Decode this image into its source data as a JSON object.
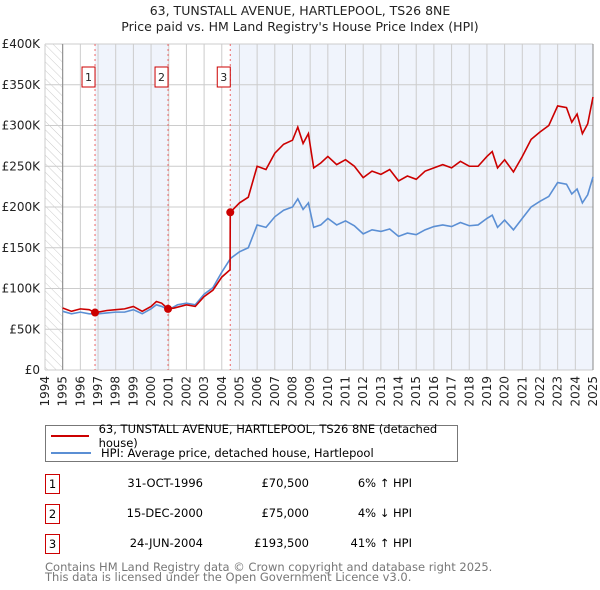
{
  "title_line1": "63, TUNSTALL AVENUE, HARTLEPOOL, TS26 8NE",
  "title_line2": "Price paid vs. HM Land Registry's House Price Index (HPI)",
  "chart_data": {
    "type": "line",
    "title": "63, TUNSTALL AVENUE, HARTLEPOOL, TS26 8NE — Price paid vs. HM Land Registry's House Price Index (HPI)",
    "xlim": [
      1994,
      2025
    ],
    "ylim": [
      0,
      400000
    ],
    "x_ticks": [
      "1994",
      "1995",
      "1996",
      "1997",
      "1998",
      "1999",
      "2000",
      "2001",
      "2002",
      "2003",
      "2004",
      "2005",
      "2006",
      "2007",
      "2008",
      "2009",
      "2010",
      "2011",
      "2012",
      "2013",
      "2014",
      "2015",
      "2016",
      "2017",
      "2018",
      "2019",
      "2020",
      "2021",
      "2022",
      "2023",
      "2024",
      "2025"
    ],
    "y_ticks": [
      {
        "v": 0,
        "label": "£0"
      },
      {
        "v": 50000,
        "label": "£50K"
      },
      {
        "v": 100000,
        "label": "£100K"
      },
      {
        "v": 150000,
        "label": "£150K"
      },
      {
        "v": 200000,
        "label": "£200K"
      },
      {
        "v": 250000,
        "label": "£250K"
      },
      {
        "v": 300000,
        "label": "£300K"
      },
      {
        "v": 350000,
        "label": "£350K"
      },
      {
        "v": 400000,
        "label": "£400K"
      }
    ],
    "grid": true,
    "series": [
      {
        "name": "63, TUNSTALL AVENUE, HARTLEPOOL, TS26 8NE (detached house)",
        "color": "#cc0000",
        "points": [
          [
            1995,
            76
          ],
          [
            1995.5,
            72
          ],
          [
            1996,
            75
          ],
          [
            1996.5,
            74
          ],
          [
            1996.83,
            70.5
          ],
          [
            1997,
            71
          ],
          [
            1997.5,
            73
          ],
          [
            1998,
            74
          ],
          [
            1998.5,
            75
          ],
          [
            1999,
            78
          ],
          [
            1999.5,
            72
          ],
          [
            2000,
            78
          ],
          [
            2000.3,
            84
          ],
          [
            2000.6,
            82
          ],
          [
            2000.96,
            75
          ],
          [
            2001.3,
            76
          ],
          [
            2002,
            80
          ],
          [
            2002.5,
            78
          ],
          [
            2003,
            90
          ],
          [
            2003.5,
            98
          ],
          [
            2004,
            114
          ],
          [
            2004.47,
            123
          ],
          [
            2004.48,
            193.5
          ],
          [
            2005,
            205
          ],
          [
            2005.5,
            212
          ],
          [
            2006,
            250
          ],
          [
            2006.5,
            246
          ],
          [
            2007,
            266
          ],
          [
            2007.5,
            277
          ],
          [
            2008,
            282
          ],
          [
            2008.3,
            298
          ],
          [
            2008.6,
            278
          ],
          [
            2008.9,
            290
          ],
          [
            2009.2,
            248
          ],
          [
            2009.6,
            254
          ],
          [
            2010,
            262
          ],
          [
            2010.5,
            252
          ],
          [
            2011,
            258
          ],
          [
            2011.5,
            250
          ],
          [
            2012,
            236
          ],
          [
            2012.5,
            244
          ],
          [
            2013,
            240
          ],
          [
            2013.5,
            246
          ],
          [
            2014,
            232
          ],
          [
            2014.5,
            238
          ],
          [
            2015,
            234
          ],
          [
            2015.5,
            244
          ],
          [
            2016,
            248
          ],
          [
            2016.5,
            252
          ],
          [
            2017,
            248
          ],
          [
            2017.5,
            256
          ],
          [
            2018,
            250
          ],
          [
            2018.5,
            250
          ],
          [
            2019,
            262
          ],
          [
            2019.3,
            268
          ],
          [
            2019.6,
            248
          ],
          [
            2020,
            258
          ],
          [
            2020.5,
            243
          ],
          [
            2021,
            262
          ],
          [
            2021.5,
            283
          ],
          [
            2022,
            292
          ],
          [
            2022.5,
            300
          ],
          [
            2023,
            324
          ],
          [
            2023.5,
            322
          ],
          [
            2023.8,
            304
          ],
          [
            2024.1,
            314
          ],
          [
            2024.4,
            290
          ],
          [
            2024.7,
            302
          ],
          [
            2025,
            335
          ]
        ]
      },
      {
        "name": "HPI: Average price, detached house, Hartlepool",
        "color": "#5b8fd4",
        "points": [
          [
            1995,
            72
          ],
          [
            1995.5,
            69
          ],
          [
            1996,
            71
          ],
          [
            1996.5,
            69
          ],
          [
            1997,
            69
          ],
          [
            1997.5,
            70
          ],
          [
            1998,
            71
          ],
          [
            1998.5,
            71
          ],
          [
            1999,
            74
          ],
          [
            1999.5,
            69
          ],
          [
            2000,
            75
          ],
          [
            2000.3,
            80
          ],
          [
            2000.6,
            78
          ],
          [
            2001,
            74
          ],
          [
            2001.5,
            80
          ],
          [
            2002,
            82
          ],
          [
            2002.5,
            80
          ],
          [
            2003,
            93
          ],
          [
            2003.5,
            101
          ],
          [
            2004,
            120
          ],
          [
            2004.5,
            137
          ],
          [
            2005,
            145
          ],
          [
            2005.5,
            150
          ],
          [
            2006,
            178
          ],
          [
            2006.5,
            175
          ],
          [
            2007,
            188
          ],
          [
            2007.5,
            196
          ],
          [
            2008,
            200
          ],
          [
            2008.3,
            210
          ],
          [
            2008.6,
            197
          ],
          [
            2008.9,
            205
          ],
          [
            2009.2,
            175
          ],
          [
            2009.6,
            178
          ],
          [
            2010,
            186
          ],
          [
            2010.5,
            178
          ],
          [
            2011,
            183
          ],
          [
            2011.5,
            177
          ],
          [
            2012,
            167
          ],
          [
            2012.5,
            172
          ],
          [
            2013,
            170
          ],
          [
            2013.5,
            173
          ],
          [
            2014,
            164
          ],
          [
            2014.5,
            168
          ],
          [
            2015,
            166
          ],
          [
            2015.5,
            172
          ],
          [
            2016,
            176
          ],
          [
            2016.5,
            178
          ],
          [
            2017,
            176
          ],
          [
            2017.5,
            181
          ],
          [
            2018,
            177
          ],
          [
            2018.5,
            178
          ],
          [
            2019,
            186
          ],
          [
            2019.3,
            190
          ],
          [
            2019.6,
            175
          ],
          [
            2020,
            184
          ],
          [
            2020.5,
            172
          ],
          [
            2021,
            186
          ],
          [
            2021.5,
            200
          ],
          [
            2022,
            207
          ],
          [
            2022.5,
            213
          ],
          [
            2023,
            230
          ],
          [
            2023.5,
            228
          ],
          [
            2023.8,
            216
          ],
          [
            2024.1,
            222
          ],
          [
            2024.4,
            205
          ],
          [
            2024.7,
            215
          ],
          [
            2025,
            237
          ]
        ]
      }
    ],
    "y_units_note": "points in £K",
    "sales": [
      {
        "id": "1",
        "x": 1996.83,
        "price": 70500
      },
      {
        "id": "2",
        "x": 2000.96,
        "price": 75000
      },
      {
        "id": "3",
        "x": 2004.48,
        "price": 193500
      }
    ]
  },
  "legend": {
    "property": "63, TUNSTALL AVENUE, HARTLEPOOL, TS26 8NE (detached house)",
    "hpi": "HPI: Average price, detached house, Hartlepool"
  },
  "transactions": [
    {
      "id": "1",
      "date": "31-OCT-1996",
      "price": "£70,500",
      "hpi": "6% ↑ HPI"
    },
    {
      "id": "2",
      "date": "15-DEC-2000",
      "price": "£75,000",
      "hpi": "4% ↓ HPI"
    },
    {
      "id": "3",
      "date": "24-JUN-2004",
      "price": "£193,500",
      "hpi": "41% ↑ HPI"
    }
  ],
  "footer": {
    "line1": "Contains HM Land Registry data © Crown copyright and database right 2025.",
    "line2": "This data is licensed under the Open Government Licence v3.0."
  }
}
